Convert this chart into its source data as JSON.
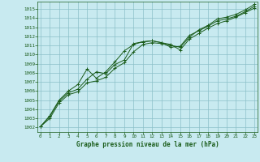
{
  "title": "Graphe pression niveau de la mer (hPa)",
  "bg_color": "#c8eaf0",
  "grid_color": "#8bbfc8",
  "line_color": "#1a5c1a",
  "ylim_min": 1001.5,
  "ylim_max": 1015.8,
  "xlim_min": -0.3,
  "xlim_max": 23.3,
  "yticks": [
    1002,
    1003,
    1004,
    1005,
    1006,
    1007,
    1008,
    1009,
    1010,
    1011,
    1012,
    1013,
    1014,
    1015
  ],
  "xticks": [
    0,
    1,
    2,
    3,
    4,
    5,
    6,
    7,
    8,
    9,
    10,
    11,
    12,
    13,
    14,
    15,
    16,
    17,
    18,
    19,
    20,
    21,
    22,
    23
  ],
  "series": [
    [
      1002.1,
      1003.2,
      1004.9,
      1005.8,
      1006.2,
      1007.3,
      1008.1,
      1007.9,
      1008.9,
      1009.4,
      1011.2,
      1011.4,
      1011.5,
      1011.3,
      1010.8,
      1010.9,
      1012.1,
      1012.6,
      1013.1,
      1013.7,
      1013.9,
      1014.2,
      1014.7,
      1015.3
    ],
    [
      1002.1,
      1003.3,
      1005.0,
      1006.0,
      1006.7,
      1008.4,
      1007.4,
      1008.1,
      1009.2,
      1010.4,
      1011.1,
      1011.4,
      1011.5,
      1011.3,
      1011.1,
      1010.5,
      1011.7,
      1012.3,
      1012.9,
      1013.4,
      1013.7,
      1014.1,
      1014.6,
      1015.1
    ],
    [
      1002.1,
      1003.0,
      1004.7,
      1005.6,
      1005.9,
      1006.9,
      1007.1,
      1007.5,
      1008.5,
      1009.1,
      1010.3,
      1011.1,
      1011.3,
      1011.2,
      1011.0,
      1010.8,
      1011.9,
      1012.7,
      1013.2,
      1013.9,
      1014.1,
      1014.4,
      1014.9,
      1015.5
    ]
  ]
}
